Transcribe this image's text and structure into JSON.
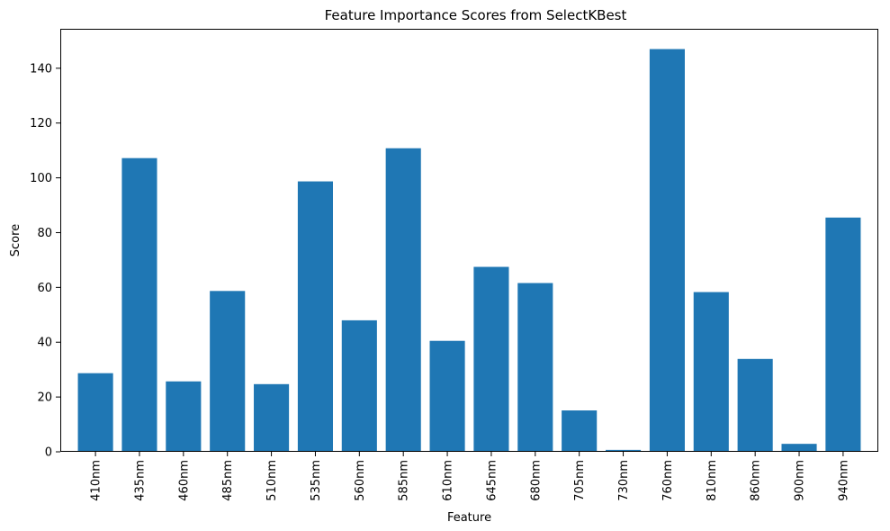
{
  "chart_data": {
    "type": "bar",
    "title": "Feature Importance Scores from SelectKBest",
    "xlabel": "Feature",
    "ylabel": "Score",
    "categories": [
      "410nm",
      "435nm",
      "460nm",
      "485nm",
      "510nm",
      "535nm",
      "560nm",
      "585nm",
      "610nm",
      "645nm",
      "680nm",
      "705nm",
      "730nm",
      "760nm",
      "810nm",
      "860nm",
      "900nm",
      "940nm"
    ],
    "values": [
      28.7,
      107.2,
      25.7,
      58.7,
      24.7,
      98.7,
      48.0,
      110.8,
      40.5,
      67.5,
      61.6,
      15.1,
      0.7,
      147.0,
      58.3,
      33.9,
      2.9,
      85.5
    ],
    "ylim": [
      0,
      154.4
    ],
    "yticks": [
      0,
      20,
      40,
      60,
      80,
      100,
      120,
      140
    ],
    "bar_color": "#1f77b4",
    "grid": false,
    "legend": false
  }
}
